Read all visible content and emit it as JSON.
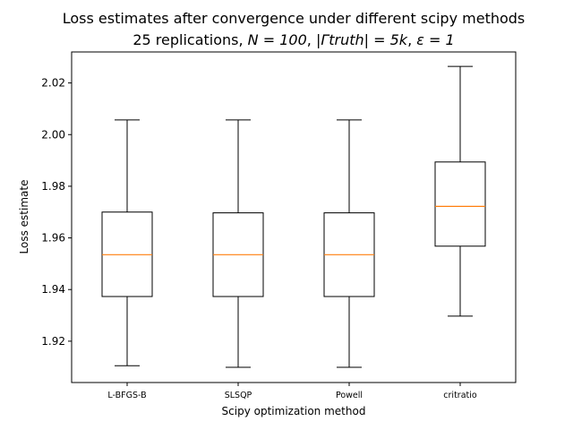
{
  "chart_data": {
    "type": "box",
    "title": "Loss estimates after convergence under different scipy methods",
    "subtitle_plain": "25 replications,",
    "subtitle_n": "N = 100",
    "subtitle_gamma": "|Γtruth| = 5k",
    "subtitle_eps": "ε = 1",
    "xlabel": "Scipy optimization method",
    "ylabel": "Loss estimate",
    "ylim": [
      1.904,
      2.032
    ],
    "yticks": [
      "1.92",
      "1.94",
      "1.96",
      "1.98",
      "2.00",
      "2.02"
    ],
    "categories": [
      "L-BFGS-B",
      "SLSQP",
      "Powell",
      "critratio"
    ],
    "boxes": [
      {
        "whisker_low": 1.9105,
        "q1": 1.9373,
        "median": 1.9535,
        "q3": 1.97,
        "whisker_high": 2.0057
      },
      {
        "whisker_low": 1.9099,
        "q1": 1.9373,
        "median": 1.9535,
        "q3": 1.9697,
        "whisker_high": 2.0057
      },
      {
        "whisker_low": 1.9099,
        "q1": 1.9373,
        "median": 1.9535,
        "q3": 1.9697,
        "whisker_high": 2.0057
      },
      {
        "whisker_low": 1.9297,
        "q1": 1.9568,
        "median": 1.9722,
        "q3": 1.9894,
        "whisker_high": 2.0264
      }
    ],
    "colors": {
      "box": "#000000",
      "median": "#ff7f0e"
    },
    "grid": false,
    "legend": "none"
  }
}
